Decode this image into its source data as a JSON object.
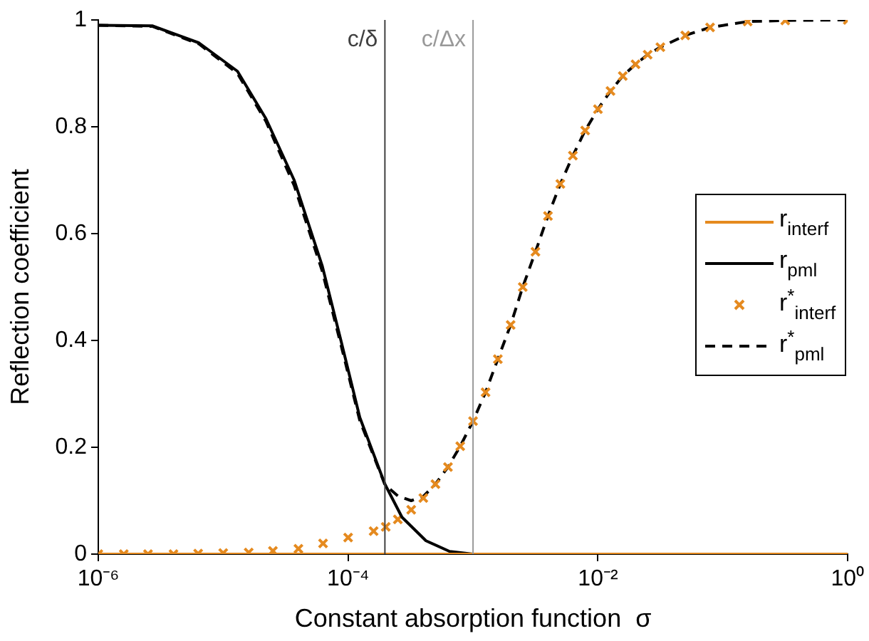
{
  "chart_data": {
    "type": "line",
    "xlabel": "Constant absorption function  σ",
    "ylabel": "Reflection coefficient",
    "log": "x",
    "grid": false,
    "legend": "right",
    "xlim": [
      1e-06,
      1
    ],
    "ylim": [
      0,
      1
    ],
    "xticks": [
      {
        "value": 1e-06,
        "label": "10⁻⁶"
      },
      {
        "value": 0.0001,
        "label": "10⁻⁴"
      },
      {
        "value": 0.01,
        "label": "10⁻²"
      },
      {
        "value": 1,
        "label": "10⁰"
      }
    ],
    "yticks": [
      0,
      0.2,
      0.4,
      0.6,
      0.8,
      1
    ],
    "ref_lines": [
      {
        "axis": "x",
        "value": 0.000197,
        "label": "c/δ",
        "color": "#404040"
      },
      {
        "axis": "x",
        "value": 0.001,
        "label": "c/Δx",
        "color": "#999999"
      }
    ],
    "series": [
      {
        "name": "r$_{interf}$",
        "type": "line",
        "color": "#e58a1f",
        "line_style": "solid",
        "marker": "none",
        "x": [
          1e-06,
          1
        ],
        "values": [
          0,
          0
        ]
      },
      {
        "name": "r$_{pml}$",
        "type": "line",
        "color": "#000000",
        "line_style": "solid",
        "marker": "none",
        "x": [
          1e-06,
          2.7e-06,
          6.4e-06,
          1.3e-05,
          2.2e-05,
          3.7e-05,
          6.2e-05,
          8.8e-05,
          0.000124,
          0.000197,
          0.00027,
          0.00042,
          0.00065,
          0.001,
          1
        ],
        "values": [
          0.99,
          0.989,
          0.957,
          0.904,
          0.815,
          0.7,
          0.54,
          0.398,
          0.256,
          0.131,
          0.069,
          0.025,
          0.005,
          0,
          0
        ]
      },
      {
        "name": "r$^{*}$$_{interf}$",
        "type": "scatter",
        "color": "#e58a1f",
        "marker": "cross",
        "x": [
          1e-06,
          1.6e-06,
          2.5e-06,
          4e-06,
          6.3e-06,
          1e-05,
          1.6e-05,
          2.5e-05,
          4e-05,
          6.3e-05,
          0.0001,
          0.00016,
          0.0002,
          0.00025,
          0.00032,
          0.0004,
          0.0005,
          0.00063,
          0.00079,
          0.001,
          0.00126,
          0.00158,
          0.002,
          0.0025,
          0.00316,
          0.00398,
          0.005,
          0.0063,
          0.0079,
          0.01,
          0.0126,
          0.0158,
          0.02,
          0.025,
          0.0316,
          0.05,
          0.079,
          0.158,
          0.316,
          1
        ],
        "values": [
          0,
          0,
          0,
          0,
          0.001,
          0.002,
          0.003,
          0.006,
          0.01,
          0.02,
          0.031,
          0.043,
          0.051,
          0.065,
          0.083,
          0.105,
          0.131,
          0.163,
          0.202,
          0.249,
          0.303,
          0.365,
          0.429,
          0.5,
          0.566,
          0.633,
          0.693,
          0.746,
          0.793,
          0.833,
          0.867,
          0.895,
          0.917,
          0.935,
          0.949,
          0.971,
          0.986,
          0.997,
          0.999,
          1
        ]
      },
      {
        "name": "r$^{*}$$_{pml}$",
        "type": "line",
        "color": "#000000",
        "line_style": "dashed",
        "marker": "none",
        "x": [
          1e-06,
          2.7e-06,
          6.4e-06,
          1.3e-05,
          2.2e-05,
          3.7e-05,
          6.2e-05,
          8.8e-05,
          0.000124,
          0.000197,
          0.00025,
          0.00032,
          0.0004,
          0.0005,
          0.00063,
          0.00079,
          0.001,
          0.00126,
          0.00158,
          0.002,
          0.0025,
          0.00316,
          0.00398,
          0.005,
          0.0063,
          0.0079,
          0.01,
          0.0126,
          0.0158,
          0.02,
          0.025,
          0.0316,
          0.05,
          0.079,
          0.158,
          0.316,
          1
        ],
        "values": [
          0.99,
          0.988,
          0.955,
          0.9,
          0.81,
          0.69,
          0.53,
          0.39,
          0.25,
          0.13,
          0.109,
          0.1,
          0.108,
          0.131,
          0.163,
          0.202,
          0.249,
          0.303,
          0.365,
          0.429,
          0.5,
          0.566,
          0.633,
          0.693,
          0.746,
          0.793,
          0.833,
          0.867,
          0.895,
          0.917,
          0.935,
          0.949,
          0.971,
          0.986,
          0.997,
          0.999,
          1
        ]
      }
    ]
  }
}
